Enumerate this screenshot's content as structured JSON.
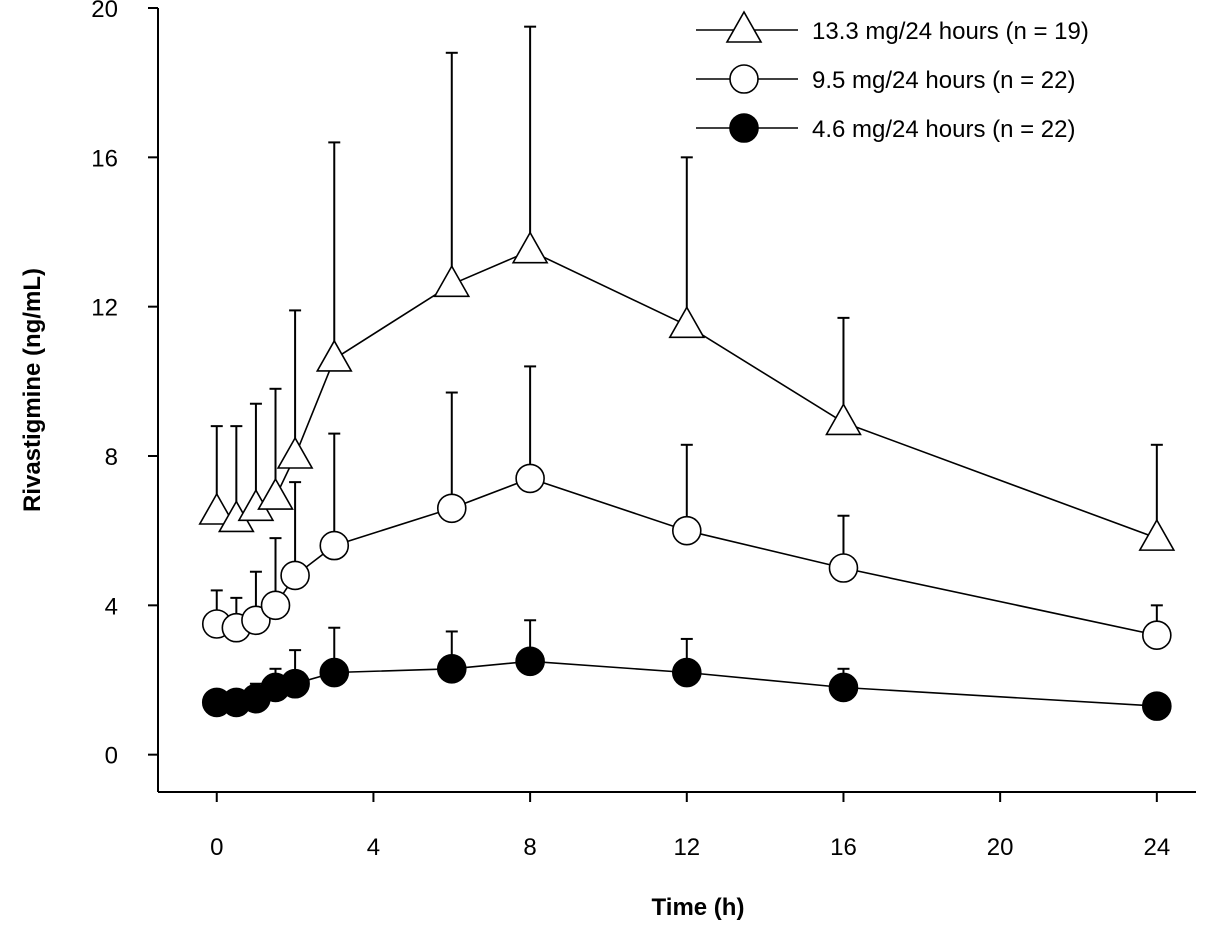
{
  "chart_data": {
    "type": "line",
    "xlabel": "Time (h)",
    "ylabel": "Rivastigmine (ng/mL)",
    "xlim": [
      -1.5,
      25
    ],
    "ylim": [
      -1,
      20
    ],
    "xticks": [
      0,
      4,
      8,
      12,
      16,
      20,
      24
    ],
    "yticks": [
      0,
      4,
      8,
      12,
      16,
      20
    ],
    "grid": false,
    "legend_position": "top-right",
    "error_bars": "upper only (SD)",
    "series": [
      {
        "name": "13.3 mg/24 hours (n = 19)",
        "marker": "open-triangle",
        "x": [
          0,
          0.5,
          1,
          1.5,
          2,
          3,
          6,
          8,
          12,
          16,
          24
        ],
        "y": [
          6.5,
          6.3,
          6.6,
          6.9,
          8.0,
          10.6,
          12.6,
          13.5,
          11.5,
          8.9,
          5.8
        ],
        "err_upper": [
          8.8,
          8.8,
          9.4,
          9.8,
          11.9,
          16.4,
          18.8,
          19.5,
          16.0,
          11.7,
          8.3
        ]
      },
      {
        "name": "9.5 mg/24 hours (n = 22)",
        "marker": "open-circle",
        "x": [
          0,
          0.5,
          1,
          1.5,
          2,
          3,
          6,
          8,
          12,
          16,
          24
        ],
        "y": [
          3.5,
          3.4,
          3.6,
          4.0,
          4.8,
          5.6,
          6.6,
          7.4,
          6.0,
          5.0,
          3.2
        ],
        "err_upper": [
          4.4,
          4.2,
          4.9,
          5.8,
          7.3,
          8.6,
          9.7,
          10.4,
          8.3,
          6.4,
          4.0
        ]
      },
      {
        "name": "4.6 mg/24 hours (n = 22)",
        "marker": "filled-circle",
        "x": [
          0,
          0.5,
          1,
          1.5,
          2,
          3,
          6,
          8,
          12,
          16,
          24
        ],
        "y": [
          1.4,
          1.4,
          1.5,
          1.8,
          1.9,
          2.2,
          2.3,
          2.5,
          2.2,
          1.8,
          1.3
        ],
        "err_upper": [
          1.4,
          1.6,
          1.9,
          2.3,
          2.8,
          3.4,
          3.3,
          3.6,
          3.1,
          2.3,
          1.3
        ]
      }
    ]
  }
}
